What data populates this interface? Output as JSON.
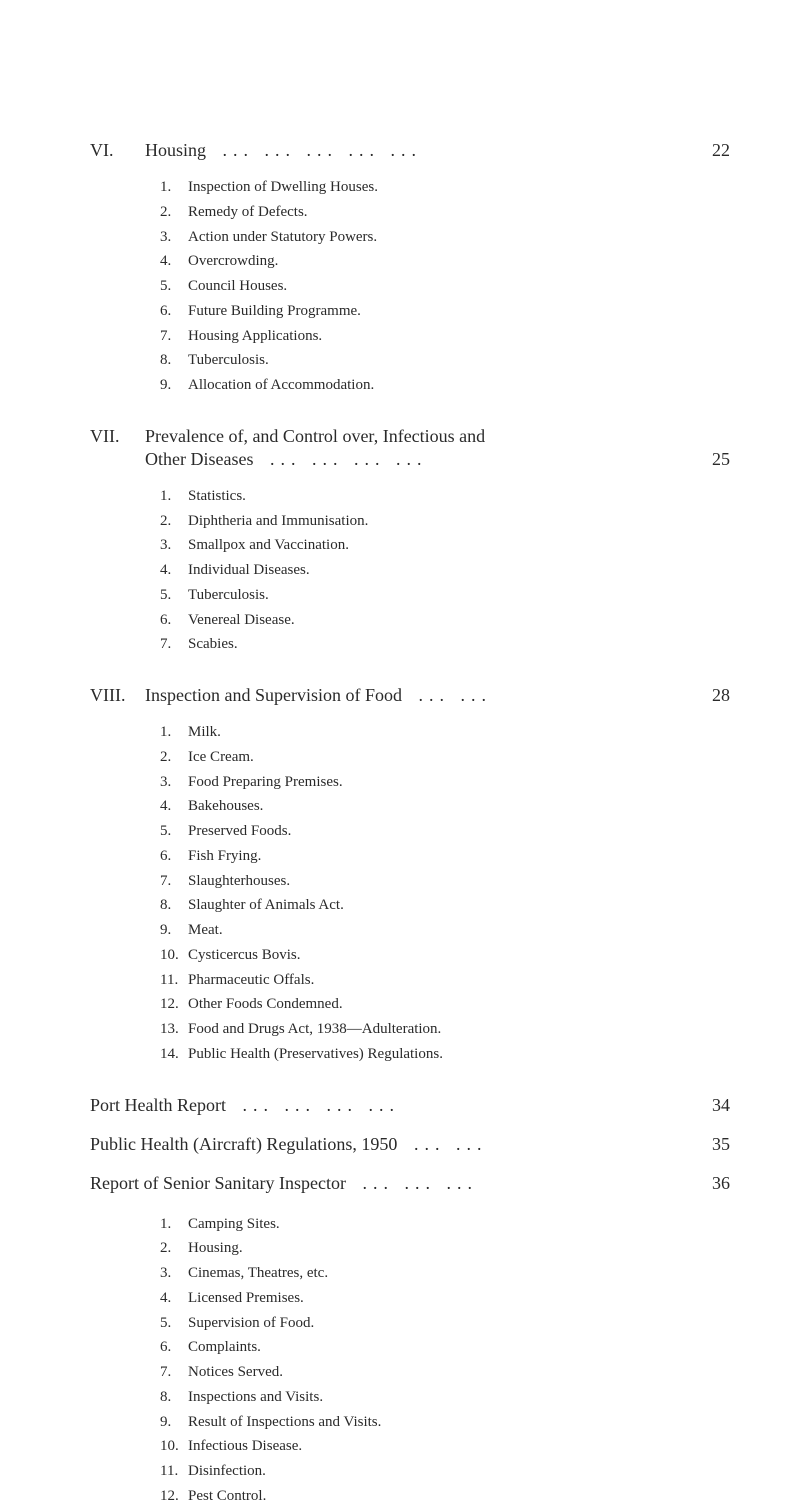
{
  "sections": {
    "vi": {
      "roman": "VI.",
      "title": "Housing",
      "dots": "...         ...         ...         ...         ...",
      "page": "22",
      "items": [
        {
          "num": "1.",
          "text": "Inspection of Dwelling Houses."
        },
        {
          "num": "2.",
          "text": "Remedy of Defects."
        },
        {
          "num": "3.",
          "text": "Action under Statutory Powers."
        },
        {
          "num": "4.",
          "text": "Overcrowding."
        },
        {
          "num": "5.",
          "text": "Council Houses."
        },
        {
          "num": "6.",
          "text": "Future Building Programme."
        },
        {
          "num": "7.",
          "text": "Housing Applications."
        },
        {
          "num": "8.",
          "text": "Tuberculosis."
        },
        {
          "num": "9.",
          "text": "Allocation of Accommodation."
        }
      ]
    },
    "vii": {
      "roman": "VII.",
      "title_line1": "Prevalence of, and Control over, Infectious and",
      "title_line2": "Other Diseases",
      "dots": "...        ...        ...        ...",
      "page": "25",
      "items": [
        {
          "num": "1.",
          "text": "Statistics."
        },
        {
          "num": "2.",
          "text": "Diphtheria and Immunisation."
        },
        {
          "num": "3.",
          "text": "Smallpox and Vaccination."
        },
        {
          "num": "4.",
          "text": "Individual Diseases."
        },
        {
          "num": "5.",
          "text": "Tuberculosis."
        },
        {
          "num": "6.",
          "text": "Venereal Disease."
        },
        {
          "num": "7.",
          "text": "Scabies."
        }
      ]
    },
    "viii": {
      "roman": "VIII.",
      "title": "Inspection and Supervision of Food",
      "dots": "...        ...",
      "page": "28",
      "items": [
        {
          "num": "1.",
          "text": "Milk."
        },
        {
          "num": "2.",
          "text": "Ice Cream."
        },
        {
          "num": "3.",
          "text": "Food Preparing Premises."
        },
        {
          "num": "4.",
          "text": "Bakehouses."
        },
        {
          "num": "5.",
          "text": "Preserved Foods."
        },
        {
          "num": "6.",
          "text": "Fish Frying."
        },
        {
          "num": "7.",
          "text": "Slaughterhouses."
        },
        {
          "num": "8.",
          "text": "Slaughter of Animals Act."
        },
        {
          "num": "9.",
          "text": "Meat."
        },
        {
          "num": "10.",
          "text": "Cysticercus Bovis."
        },
        {
          "num": "11.",
          "text": "Pharmaceutic Offals."
        },
        {
          "num": "12.",
          "text": "Other Foods Condemned."
        },
        {
          "num": "13.",
          "text": "Food and Drugs Act, 1938—Adulteration."
        },
        {
          "num": "14.",
          "text": "Public Health (Preservatives) Regulations."
        }
      ]
    }
  },
  "standalones": {
    "port": {
      "title": "Port Health Report",
      "dots": "...        ...        ...        ...",
      "page": "34"
    },
    "aircraft": {
      "title": "Public Health (Aircraft) Regulations, 1950",
      "dots": "...        ...",
      "page": "35"
    },
    "inspector": {
      "title": "Report of Senior Sanitary Inspector",
      "dots": "...        ...        ...",
      "page": "36",
      "items": [
        {
          "num": "1.",
          "text": "Camping Sites."
        },
        {
          "num": "2.",
          "text": "Housing."
        },
        {
          "num": "3.",
          "text": "Cinemas, Theatres, etc."
        },
        {
          "num": "4.",
          "text": "Licensed Premises."
        },
        {
          "num": "5.",
          "text": "Supervision of Food."
        },
        {
          "num": "6.",
          "text": "Complaints."
        },
        {
          "num": "7.",
          "text": "Notices Served."
        },
        {
          "num": "8.",
          "text": "Inspections and Visits."
        },
        {
          "num": "9.",
          "text": "Result of Inspections and Visits."
        },
        {
          "num": "10.",
          "text": "Infectious Disease."
        },
        {
          "num": "11.",
          "text": "Disinfection."
        },
        {
          "num": "12.",
          "text": "Pest Control."
        }
      ]
    }
  }
}
